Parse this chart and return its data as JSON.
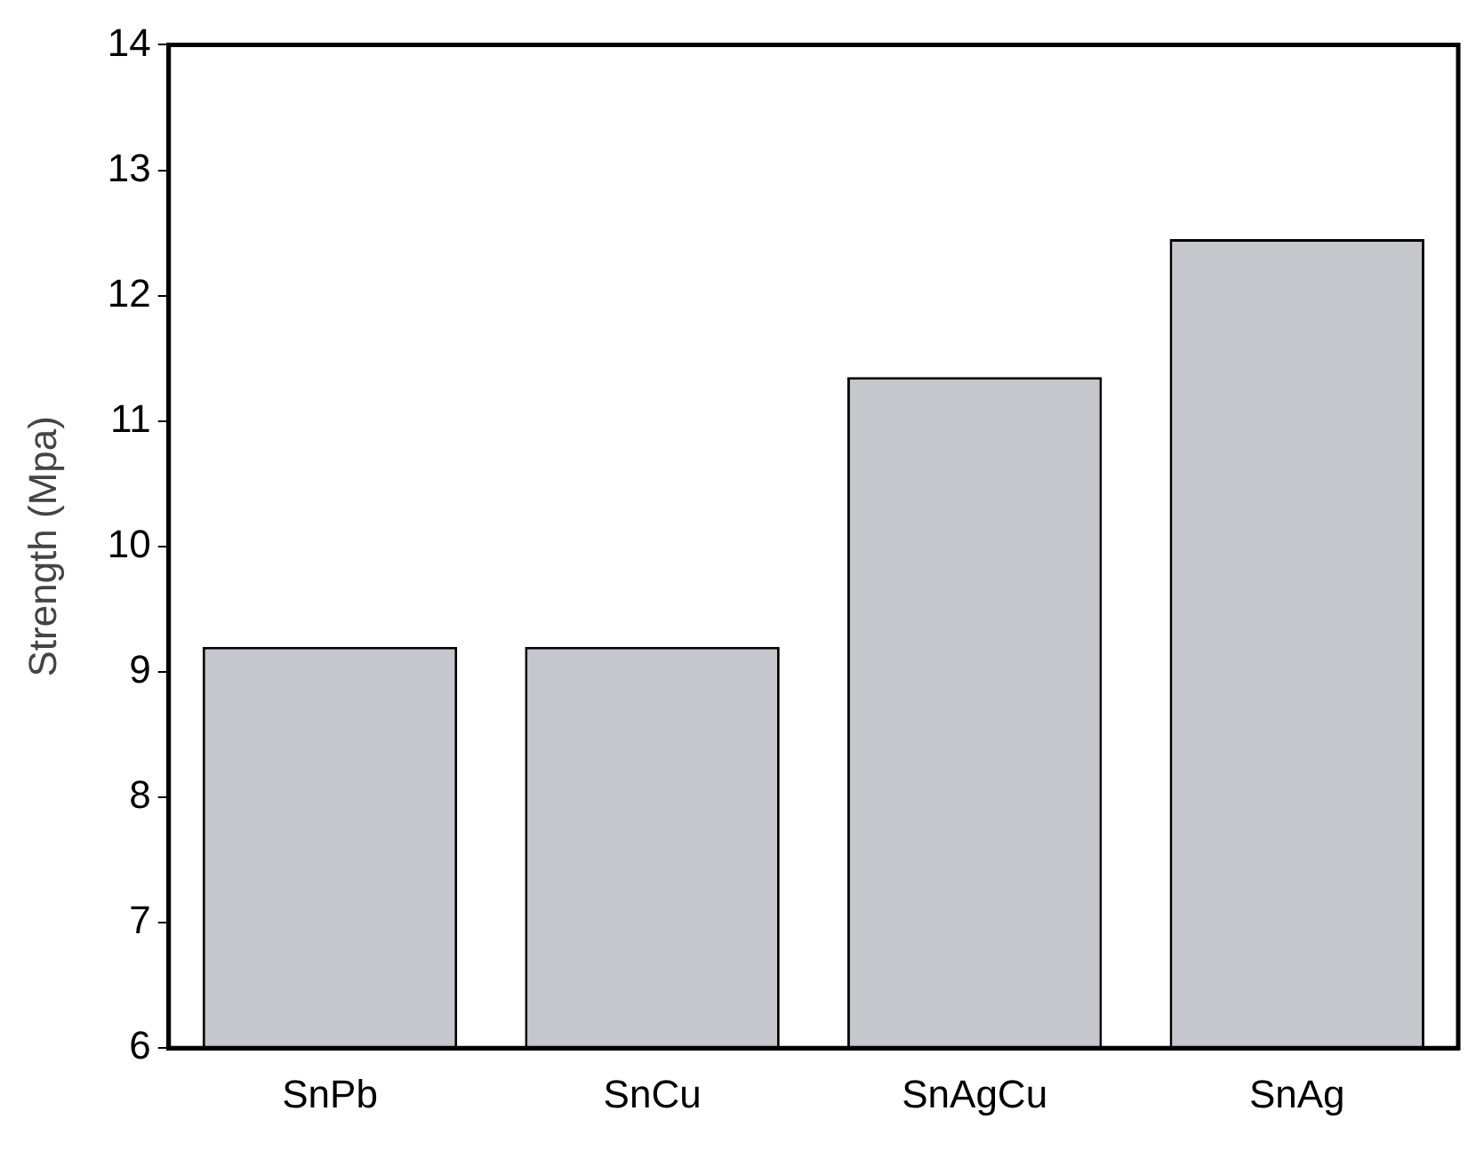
{
  "chart_data": {
    "type": "bar",
    "ylabel": "Strength (Mpa)",
    "categories": [
      "SnPb",
      "SnCu",
      "SnAgCu",
      "SnAg"
    ],
    "values": [
      9.2,
      9.2,
      11.35,
      12.45
    ],
    "color": "#c5c7cc",
    "ylim": [
      6,
      14
    ],
    "yticks": [
      6,
      7,
      8,
      9,
      10,
      11,
      12,
      13,
      14
    ],
    "grid": false,
    "legend": false
  }
}
